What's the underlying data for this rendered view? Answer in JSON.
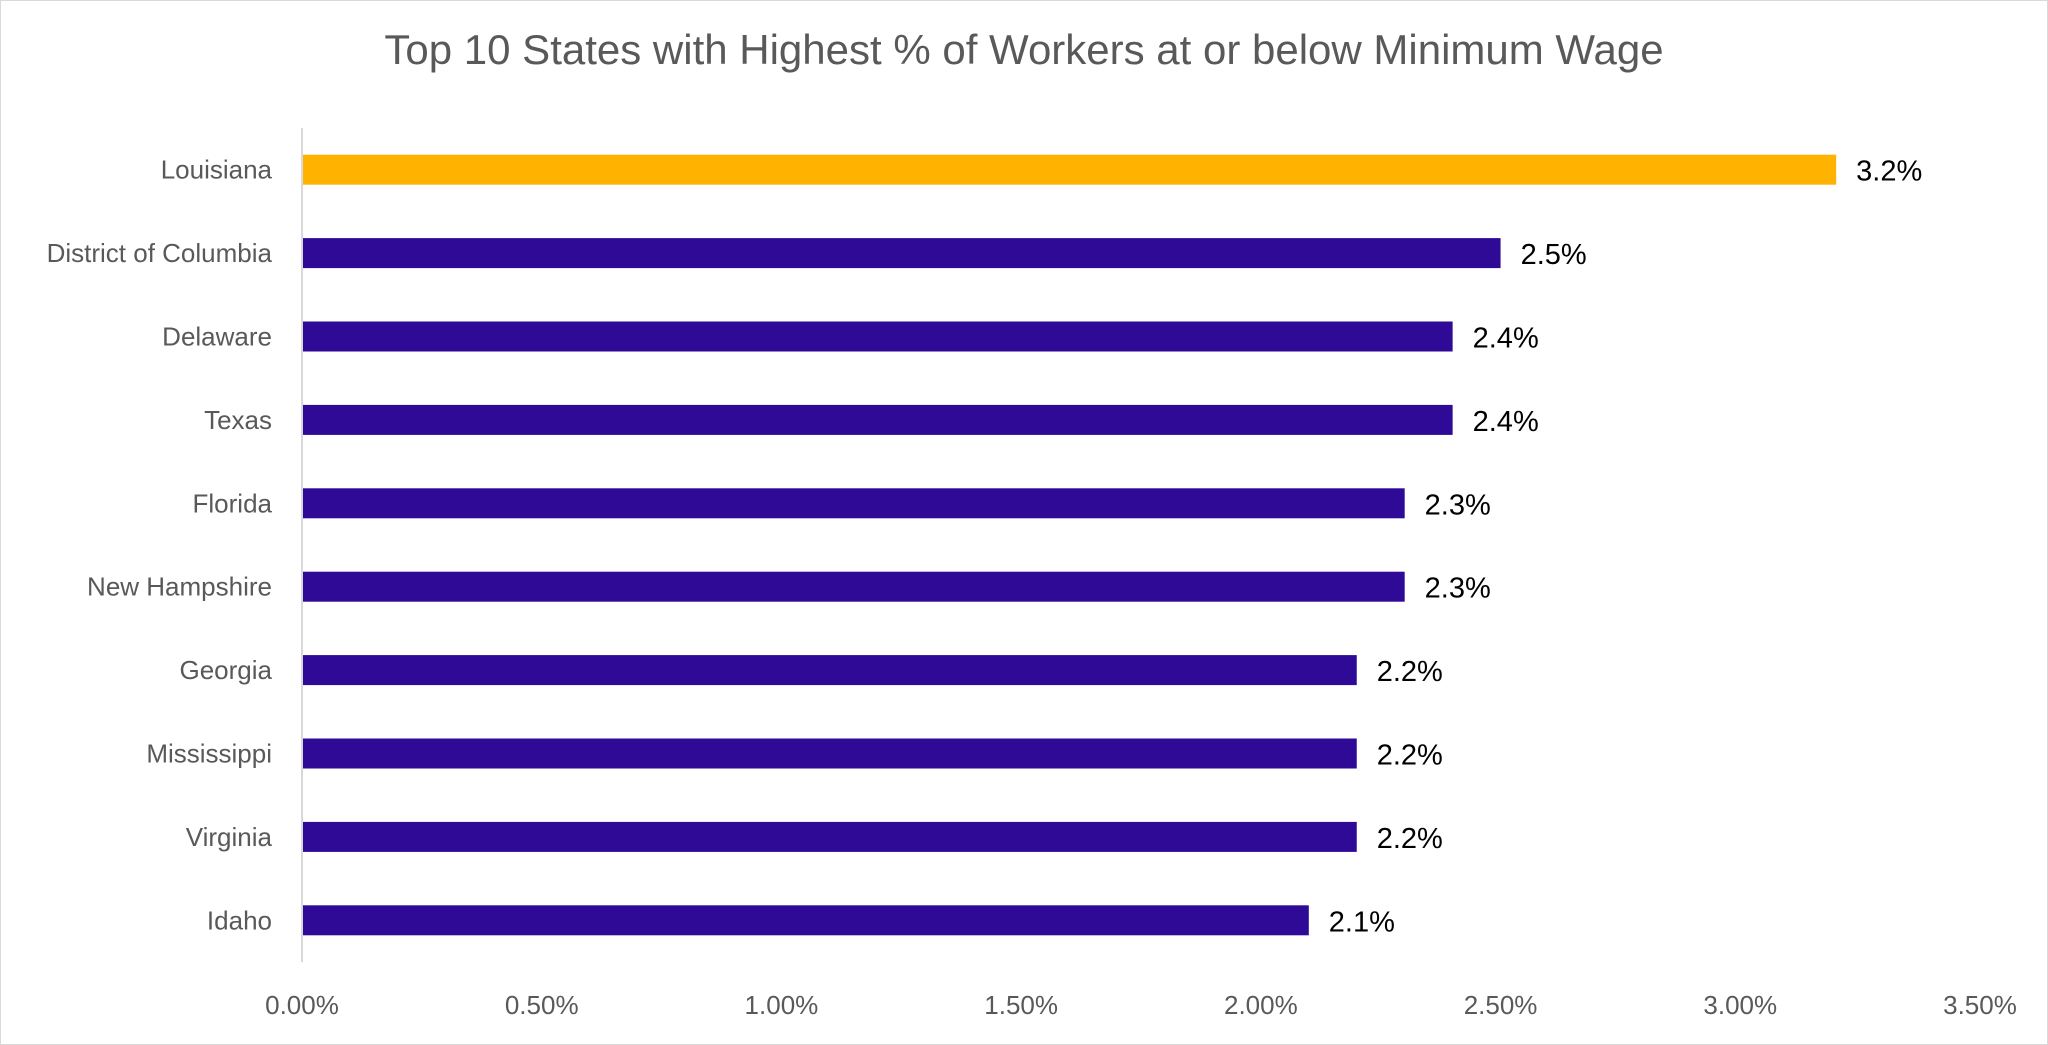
{
  "chart_data": {
    "type": "bar",
    "orientation": "horizontal",
    "title": "Top 10 States with Highest % of Workers at or below Minimum Wage",
    "xlabel": "",
    "ylabel": "",
    "categories": [
      "Louisiana",
      "District of Columbia",
      "Delaware",
      "Texas",
      "Florida",
      "New Hampshire",
      "Georgia",
      "Mississippi",
      "Virginia",
      "Idaho"
    ],
    "values": [
      3.2,
      2.5,
      2.4,
      2.4,
      2.3,
      2.3,
      2.2,
      2.2,
      2.2,
      2.1
    ],
    "data_labels": [
      "3.2%",
      "2.5%",
      "2.4%",
      "2.4%",
      "2.3%",
      "2.3%",
      "2.2%",
      "2.2%",
      "2.2%",
      "2.1%"
    ],
    "xlim": [
      0,
      3.5
    ],
    "x_ticks": [
      0,
      0.5,
      1.0,
      1.5,
      2.0,
      2.5,
      3.0,
      3.5
    ],
    "x_tick_labels": [
      "0.00%",
      "0.50%",
      "1.00%",
      "1.50%",
      "2.00%",
      "2.50%",
      "3.00%",
      "3.50%"
    ],
    "grid": false,
    "legend": "none",
    "colors": {
      "highlight": "#FFB300",
      "default": "#2E0A96",
      "axis": "#d9d9d9"
    },
    "highlight_index": 0
  }
}
